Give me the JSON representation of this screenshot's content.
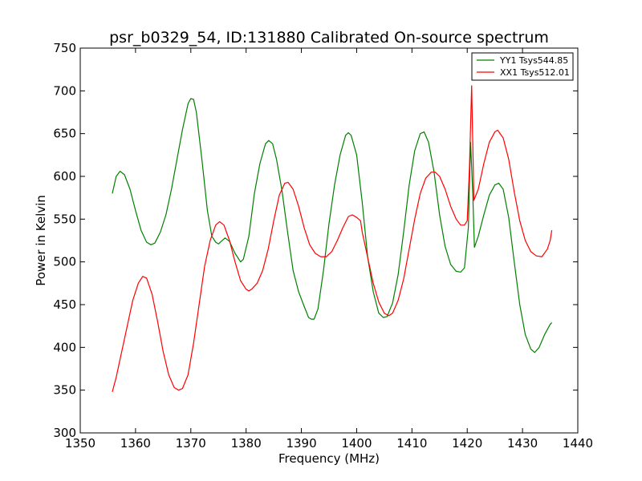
{
  "chart_data": {
    "type": "line",
    "title": "psr_b0329_54, ID:131880 Calibrated On-source spectrum",
    "xlabel": "Frequency (MHz)",
    "ylabel": "Power in Kelvin",
    "xlim": [
      1350,
      1440
    ],
    "ylim": [
      300,
      750
    ],
    "xticks": [
      "1350",
      "1360",
      "1370",
      "1380",
      "1390",
      "1400",
      "1410",
      "1420",
      "1430",
      "1440"
    ],
    "yticks": [
      "300",
      "350",
      "400",
      "450",
      "500",
      "550",
      "600",
      "650",
      "700",
      "750"
    ],
    "grid": false,
    "legend_position": "top-right",
    "series": [
      {
        "name": "YY1 Tsys544.85",
        "color": "#008000",
        "points": [
          [
            1355.8,
            580
          ],
          [
            1356.5,
            600
          ],
          [
            1357.2,
            606
          ],
          [
            1358,
            602
          ],
          [
            1359,
            585
          ],
          [
            1360,
            560
          ],
          [
            1361,
            537
          ],
          [
            1362,
            523
          ],
          [
            1362.8,
            520
          ],
          [
            1363.5,
            522
          ],
          [
            1364.5,
            535
          ],
          [
            1365.5,
            555
          ],
          [
            1366.5,
            585
          ],
          [
            1367.5,
            620
          ],
          [
            1368.5,
            655
          ],
          [
            1369.5,
            685
          ],
          [
            1370,
            691
          ],
          [
            1370.5,
            690
          ],
          [
            1371,
            675
          ],
          [
            1372,
            620
          ],
          [
            1373,
            560
          ],
          [
            1373.8,
            530
          ],
          [
            1374.5,
            523
          ],
          [
            1375,
            521
          ],
          [
            1375.5,
            524
          ],
          [
            1376.2,
            528
          ],
          [
            1377,
            524
          ],
          [
            1378,
            510
          ],
          [
            1379,
            500
          ],
          [
            1379.5,
            503
          ],
          [
            1380.5,
            530
          ],
          [
            1381.5,
            580
          ],
          [
            1382.5,
            615
          ],
          [
            1383.5,
            638
          ],
          [
            1384.1,
            642
          ],
          [
            1384.8,
            638
          ],
          [
            1385.5,
            620
          ],
          [
            1386.5,
            583
          ],
          [
            1387.5,
            535
          ],
          [
            1388.5,
            490
          ],
          [
            1389.5,
            465
          ],
          [
            1390.5,
            448
          ],
          [
            1391.3,
            435
          ],
          [
            1391.8,
            433
          ],
          [
            1392.3,
            433
          ],
          [
            1393,
            445
          ],
          [
            1394,
            490
          ],
          [
            1395,
            545
          ],
          [
            1396,
            590
          ],
          [
            1397,
            625
          ],
          [
            1398,
            648
          ],
          [
            1398.5,
            651
          ],
          [
            1399,
            648
          ],
          [
            1400,
            625
          ],
          [
            1401,
            570
          ],
          [
            1402,
            505
          ],
          [
            1403,
            465
          ],
          [
            1404,
            440
          ],
          [
            1404.8,
            435
          ],
          [
            1405.5,
            436
          ],
          [
            1406.5,
            452
          ],
          [
            1407.5,
            485
          ],
          [
            1408.5,
            535
          ],
          [
            1409.5,
            590
          ],
          [
            1410.5,
            630
          ],
          [
            1411.5,
            650
          ],
          [
            1412.2,
            652
          ],
          [
            1413,
            640
          ],
          [
            1414,
            605
          ],
          [
            1415,
            555
          ],
          [
            1416,
            518
          ],
          [
            1417,
            497
          ],
          [
            1418,
            489
          ],
          [
            1418.8,
            488
          ],
          [
            1419.5,
            493
          ],
          [
            1420.2,
            540
          ],
          [
            1420.6,
            640
          ],
          [
            1421,
            580
          ],
          [
            1421.3,
            517
          ],
          [
            1422,
            530
          ],
          [
            1423,
            555
          ],
          [
            1424,
            578
          ],
          [
            1425,
            590
          ],
          [
            1425.7,
            592
          ],
          [
            1426.5,
            585
          ],
          [
            1427.5,
            552
          ],
          [
            1428.5,
            500
          ],
          [
            1429.5,
            450
          ],
          [
            1430.5,
            415
          ],
          [
            1431.5,
            398
          ],
          [
            1432.2,
            394
          ],
          [
            1433,
            400
          ],
          [
            1434,
            415
          ],
          [
            1435,
            427
          ],
          [
            1435.3,
            429
          ]
        ]
      },
      {
        "name": "XX1 Tsys512.01",
        "color": "#ff0000",
        "points": [
          [
            1355.8,
            348
          ],
          [
            1356.5,
            365
          ],
          [
            1357.5,
            395
          ],
          [
            1358.5,
            425
          ],
          [
            1359.5,
            455
          ],
          [
            1360.5,
            475
          ],
          [
            1361.3,
            483
          ],
          [
            1362,
            481
          ],
          [
            1363,
            462
          ],
          [
            1364,
            430
          ],
          [
            1365,
            395
          ],
          [
            1366,
            368
          ],
          [
            1367,
            353
          ],
          [
            1367.8,
            350
          ],
          [
            1368.5,
            352
          ],
          [
            1369.5,
            368
          ],
          [
            1370.5,
            405
          ],
          [
            1371.5,
            450
          ],
          [
            1372.5,
            495
          ],
          [
            1373.5,
            525
          ],
          [
            1374.5,
            543
          ],
          [
            1375.2,
            547
          ],
          [
            1376,
            543
          ],
          [
            1377,
            525
          ],
          [
            1378,
            500
          ],
          [
            1379,
            478
          ],
          [
            1380,
            468
          ],
          [
            1380.5,
            466
          ],
          [
            1381,
            468
          ],
          [
            1382,
            475
          ],
          [
            1383,
            490
          ],
          [
            1384,
            515
          ],
          [
            1385,
            548
          ],
          [
            1386,
            578
          ],
          [
            1387,
            592
          ],
          [
            1387.6,
            593
          ],
          [
            1388.5,
            585
          ],
          [
            1389.5,
            565
          ],
          [
            1390.5,
            540
          ],
          [
            1391.5,
            520
          ],
          [
            1392.5,
            510
          ],
          [
            1393.5,
            506
          ],
          [
            1394.5,
            506
          ],
          [
            1395.5,
            512
          ],
          [
            1396.5,
            525
          ],
          [
            1397.5,
            540
          ],
          [
            1398.5,
            553
          ],
          [
            1399.2,
            555
          ],
          [
            1400,
            552
          ],
          [
            1400.7,
            548
          ],
          [
            1401,
            535
          ],
          [
            1402,
            505
          ],
          [
            1403,
            475
          ],
          [
            1404,
            453
          ],
          [
            1405,
            440
          ],
          [
            1405.8,
            437
          ],
          [
            1406.5,
            440
          ],
          [
            1407.5,
            455
          ],
          [
            1408.5,
            480
          ],
          [
            1409.5,
            515
          ],
          [
            1410.5,
            550
          ],
          [
            1411.5,
            580
          ],
          [
            1412.5,
            598
          ],
          [
            1413.5,
            605
          ],
          [
            1414.2,
            605
          ],
          [
            1415,
            600
          ],
          [
            1416,
            585
          ],
          [
            1417,
            565
          ],
          [
            1418,
            550
          ],
          [
            1418.8,
            543
          ],
          [
            1419.5,
            543
          ],
          [
            1420,
            548
          ],
          [
            1420.4,
            610
          ],
          [
            1420.8,
            706
          ],
          [
            1421.2,
            572
          ],
          [
            1422,
            585
          ],
          [
            1423,
            615
          ],
          [
            1424,
            640
          ],
          [
            1425,
            652
          ],
          [
            1425.5,
            654
          ],
          [
            1426.5,
            645
          ],
          [
            1427.5,
            620
          ],
          [
            1428.5,
            582
          ],
          [
            1429.5,
            548
          ],
          [
            1430.5,
            525
          ],
          [
            1431.5,
            512
          ],
          [
            1432.5,
            507
          ],
          [
            1433.5,
            506
          ],
          [
            1434.5,
            515
          ],
          [
            1435,
            525
          ],
          [
            1435.3,
            537
          ]
        ]
      }
    ]
  }
}
